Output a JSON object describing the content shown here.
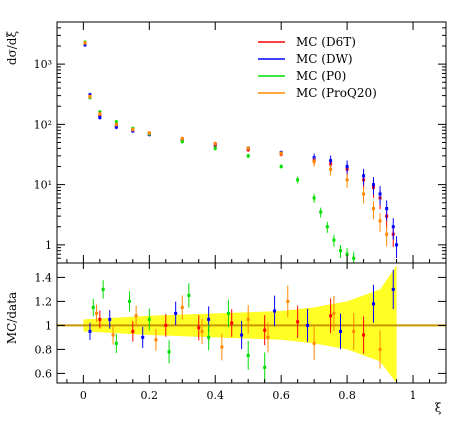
{
  "chart_data": [
    {
      "type": "scatter",
      "panel": "main",
      "ylabel": "dσ/dξ",
      "yscale": "log",
      "ylim": [
        0.5,
        5000
      ],
      "xlim": [
        -0.08,
        1.1
      ],
      "x_ticks": [
        0,
        0.2,
        0.4,
        0.6,
        0.8,
        1
      ],
      "y_tick_labels": [
        "10³",
        "10²",
        "10¹",
        "1"
      ],
      "y_tick_values": [
        1000,
        100,
        10,
        1
      ],
      "legend": "top-right",
      "series": [
        {
          "name": "MC (D6T)",
          "color": "#ff0000",
          "x": [
            0.005,
            0.02,
            0.05,
            0.1,
            0.15,
            0.2,
            0.3,
            0.4,
            0.5,
            0.6,
            0.7,
            0.75,
            0.8,
            0.85,
            0.88,
            0.9,
            0.92,
            0.94
          ],
          "y": [
            2200,
            300,
            140,
            95,
            80,
            70,
            55,
            45,
            38,
            32,
            25,
            22,
            18,
            12,
            9,
            6,
            3,
            1.5
          ]
        },
        {
          "name": "MC (DW)",
          "color": "#0000ff",
          "x": [
            0.005,
            0.02,
            0.05,
            0.1,
            0.15,
            0.2,
            0.3,
            0.4,
            0.5,
            0.6,
            0.7,
            0.75,
            0.8,
            0.85,
            0.88,
            0.9,
            0.92,
            0.94,
            0.95
          ],
          "y": [
            2100,
            310,
            130,
            90,
            78,
            68,
            56,
            47,
            40,
            34,
            28,
            25,
            20,
            14,
            10,
            7,
            4,
            2,
            1
          ]
        },
        {
          "name": "MC (P0)",
          "color": "#00dd00",
          "x": [
            0.005,
            0.02,
            0.05,
            0.1,
            0.15,
            0.2,
            0.3,
            0.4,
            0.5,
            0.6,
            0.65,
            0.7,
            0.72,
            0.74,
            0.76,
            0.78,
            0.8,
            0.82
          ],
          "y": [
            2300,
            280,
            160,
            110,
            85,
            70,
            52,
            40,
            30,
            20,
            12,
            6,
            3.5,
            2,
            1.2,
            0.8,
            0.7,
            0.6
          ]
        },
        {
          "name": "MC (ProQ20)",
          "color": "#ff8800",
          "x": [
            0.005,
            0.02,
            0.05,
            0.1,
            0.15,
            0.2,
            0.3,
            0.4,
            0.5,
            0.6,
            0.7,
            0.75,
            0.8,
            0.85,
            0.88,
            0.9,
            0.92
          ],
          "y": [
            2250,
            290,
            150,
            100,
            82,
            72,
            58,
            48,
            40,
            33,
            24,
            18,
            12,
            7,
            4,
            2.5,
            1.5
          ]
        }
      ]
    },
    {
      "type": "scatter",
      "panel": "ratio",
      "ylabel": "MC/data",
      "xlabel": "ξ",
      "ylim": [
        0.52,
        1.52
      ],
      "xlim": [
        -0.08,
        1.1
      ],
      "x_ticks": [
        0,
        0.2,
        0.4,
        0.6,
        0.8,
        1
      ],
      "y_tick_labels": [
        "0.6",
        "0.8",
        "1",
        "1.2",
        "1.4"
      ],
      "y_tick_values": [
        0.6,
        0.8,
        1.0,
        1.2,
        1.4
      ],
      "reference_line": 1.0,
      "data_band_color": "#ffff00",
      "data_band": {
        "x": [
          0.0,
          0.2,
          0.4,
          0.6,
          0.7,
          0.8,
          0.9,
          0.95
        ],
        "half_width": [
          0.05,
          0.08,
          0.1,
          0.12,
          0.15,
          0.2,
          0.3,
          0.5
        ]
      },
      "series": [
        {
          "name": "MC (D6T)",
          "color": "#ff0000",
          "x": [
            0.05,
            0.15,
            0.25,
            0.35,
            0.45,
            0.55,
            0.65,
            0.75,
            0.85
          ],
          "y": [
            1.05,
            0.95,
            1.0,
            0.98,
            1.02,
            0.96,
            1.03,
            1.08,
            0.92
          ]
        },
        {
          "name": "MC (DW)",
          "color": "#0000ff",
          "x": [
            0.02,
            0.08,
            0.18,
            0.28,
            0.38,
            0.48,
            0.58,
            0.68,
            0.78,
            0.88,
            0.94
          ],
          "y": [
            0.95,
            1.05,
            0.9,
            1.1,
            1.05,
            0.92,
            1.12,
            1.0,
            0.95,
            1.18,
            1.3
          ]
        },
        {
          "name": "MC (P0)",
          "color": "#00dd00",
          "x": [
            0.03,
            0.06,
            0.1,
            0.14,
            0.2,
            0.26,
            0.32,
            0.38,
            0.44,
            0.5,
            0.55
          ],
          "y": [
            1.15,
            1.3,
            0.85,
            1.2,
            1.05,
            0.78,
            1.25,
            0.9,
            1.1,
            0.75,
            0.65
          ]
        },
        {
          "name": "MC (ProQ20)",
          "color": "#ff8800",
          "x": [
            0.04,
            0.09,
            0.16,
            0.22,
            0.3,
            0.36,
            0.42,
            0.5,
            0.56,
            0.62,
            0.7,
            0.76,
            0.82,
            0.9
          ],
          "y": [
            1.1,
            0.92,
            1.08,
            0.88,
            1.15,
            0.95,
            0.82,
            1.05,
            0.9,
            1.2,
            0.85,
            1.1,
            0.95,
            0.8
          ]
        }
      ]
    }
  ]
}
